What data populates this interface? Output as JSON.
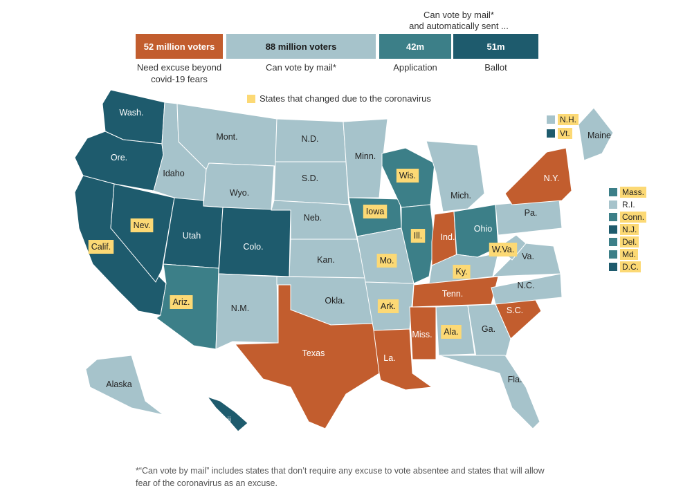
{
  "colors": {
    "excuse": "#c25d2e",
    "mail": "#a6c3cb",
    "application": "#3c7f88",
    "ballot": "#1e5b6d",
    "changed": "#fcd975",
    "text_light": "#ffffff",
    "text_dark": "#222222"
  },
  "header": {
    "top_note_line1": "Can vote by mail*",
    "top_note_line2": "and automatically sent ...",
    "segments": [
      {
        "key": "excuse",
        "bar_text": "52 million voters",
        "label_line1": "Need excuse beyond",
        "label_line2": "covid-19 fears"
      },
      {
        "key": "mail",
        "bar_text": "88 million voters",
        "label_line1": "Can vote by mail*",
        "label_line2": ""
      },
      {
        "key": "application",
        "bar_text": "42m",
        "label_line1": "Application",
        "label_line2": ""
      },
      {
        "key": "ballot",
        "bar_text": "51m",
        "label_line1": "Ballot",
        "label_line2": ""
      }
    ],
    "highlight_legend": "States that changed due to the coronavirus"
  },
  "states": [
    {
      "label": "Wash.",
      "cat": "ballot",
      "changed": false
    },
    {
      "label": "Ore.",
      "cat": "ballot",
      "changed": false
    },
    {
      "label": "Calif.",
      "cat": "ballot",
      "changed": true
    },
    {
      "label": "Nev.",
      "cat": "ballot",
      "changed": true
    },
    {
      "label": "Idaho",
      "cat": "mail",
      "changed": false
    },
    {
      "label": "Mont.",
      "cat": "mail",
      "changed": false
    },
    {
      "label": "Wyo.",
      "cat": "mail",
      "changed": false
    },
    {
      "label": "Utah",
      "cat": "ballot",
      "changed": false
    },
    {
      "label": "Colo.",
      "cat": "ballot",
      "changed": false
    },
    {
      "label": "Ariz.",
      "cat": "application",
      "changed": true
    },
    {
      "label": "N.M.",
      "cat": "mail",
      "changed": false
    },
    {
      "label": "N.D.",
      "cat": "mail",
      "changed": false
    },
    {
      "label": "S.D.",
      "cat": "mail",
      "changed": false
    },
    {
      "label": "Neb.",
      "cat": "mail",
      "changed": false
    },
    {
      "label": "Kan.",
      "cat": "mail",
      "changed": false
    },
    {
      "label": "Okla.",
      "cat": "mail",
      "changed": false
    },
    {
      "label": "Texas",
      "cat": "excuse",
      "changed": false
    },
    {
      "label": "Minn.",
      "cat": "mail",
      "changed": false
    },
    {
      "label": "Iowa",
      "cat": "application",
      "changed": true
    },
    {
      "label": "Mo.",
      "cat": "mail",
      "changed": true
    },
    {
      "label": "Ark.",
      "cat": "mail",
      "changed": true
    },
    {
      "label": "La.",
      "cat": "excuse",
      "changed": false
    },
    {
      "label": "Wis.",
      "cat": "application",
      "changed": true
    },
    {
      "label": "Ill.",
      "cat": "application",
      "changed": true
    },
    {
      "label": "Mich.",
      "cat": "mail",
      "changed": false
    },
    {
      "label": "Ind.",
      "cat": "excuse",
      "changed": false
    },
    {
      "label": "Ohio",
      "cat": "application",
      "changed": false
    },
    {
      "label": "Ky.",
      "cat": "mail",
      "changed": true
    },
    {
      "label": "Tenn.",
      "cat": "excuse",
      "changed": false
    },
    {
      "label": "Miss.",
      "cat": "excuse",
      "changed": false
    },
    {
      "label": "Ala.",
      "cat": "mail",
      "changed": true
    },
    {
      "label": "Ga.",
      "cat": "mail",
      "changed": false
    },
    {
      "label": "Fla.",
      "cat": "mail",
      "changed": false
    },
    {
      "label": "S.C.",
      "cat": "excuse",
      "changed": false
    },
    {
      "label": "N.C.",
      "cat": "mail",
      "changed": false
    },
    {
      "label": "Va.",
      "cat": "mail",
      "changed": false
    },
    {
      "label": "W.Va.",
      "cat": "mail",
      "changed": true
    },
    {
      "label": "Pa.",
      "cat": "mail",
      "changed": false
    },
    {
      "label": "N.Y.",
      "cat": "excuse",
      "changed": false
    },
    {
      "label": "Maine",
      "cat": "mail",
      "changed": false
    },
    {
      "label": "Alaska",
      "cat": "mail",
      "changed": false
    },
    {
      "label": "Hawaii",
      "cat": "ballot",
      "changed": false
    }
  ],
  "small_states": [
    {
      "label": "N.H.",
      "cat": "mail",
      "changed": true
    },
    {
      "label": "Vt.",
      "cat": "ballot",
      "changed": true
    },
    {
      "label": "Mass.",
      "cat": "application",
      "changed": true
    },
    {
      "label": "R.I.",
      "cat": "mail",
      "changed": false
    },
    {
      "label": "Conn.",
      "cat": "application",
      "changed": true
    },
    {
      "label": "N.J.",
      "cat": "ballot",
      "changed": true
    },
    {
      "label": "Del.",
      "cat": "application",
      "changed": true
    },
    {
      "label": "Md.",
      "cat": "application",
      "changed": true
    },
    {
      "label": "D.C.",
      "cat": "ballot",
      "changed": true
    }
  ],
  "footnote": "*“Can vote by mail” includes states that don’t require any excuse to vote absentee and states that will allow fear of the coronavirus as an excuse."
}
